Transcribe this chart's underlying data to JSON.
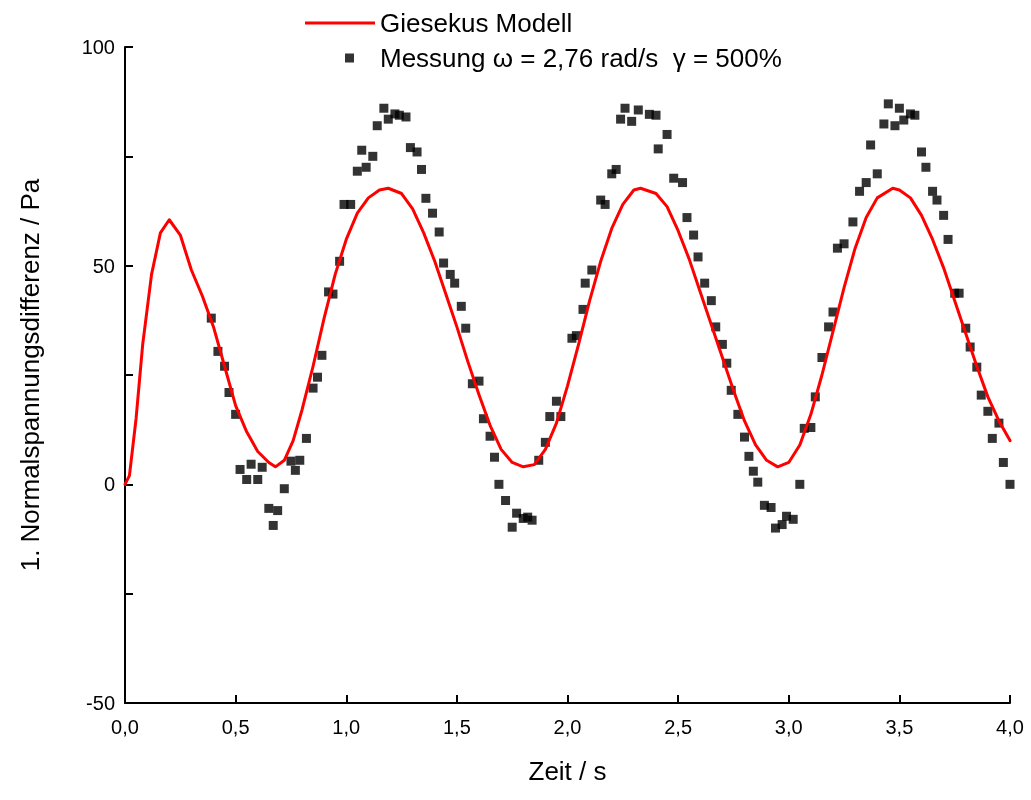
{
  "chart_data": {
    "type": "scatter",
    "xlabel": "Zeit / s",
    "ylabel": "1. Normalspannungsdifferenz / Pa",
    "xlim": [
      0,
      4
    ],
    "ylim": [
      -50,
      100
    ],
    "xticks": [
      {
        "value": 0,
        "label": "0,0"
      },
      {
        "value": 0.5,
        "label": "0,5"
      },
      {
        "value": 1,
        "label": "1,0"
      },
      {
        "value": 1.5,
        "label": "1,5"
      },
      {
        "value": 2,
        "label": "2,0"
      },
      {
        "value": 2.5,
        "label": "2,5"
      },
      {
        "value": 3,
        "label": "3,0"
      },
      {
        "value": 3.5,
        "label": "3,5"
      },
      {
        "value": 4,
        "label": "4,0"
      }
    ],
    "yticks": [
      -50,
      {
        "value": -25,
        "label": null
      },
      0,
      {
        "value": 25,
        "label": null
      },
      50,
      {
        "value": 75,
        "label": null
      },
      100
    ],
    "grid": false,
    "legend": "top",
    "series": [
      {
        "name": "Giesekus Modell",
        "type": "line",
        "marker": "none",
        "line_style": "solid",
        "color": "#ff0000",
        "x": [
          0,
          0.02,
          0.05,
          0.08,
          0.12,
          0.16,
          0.2,
          0.25,
          0.3,
          0.35,
          0.4,
          0.45,
          0.5,
          0.55,
          0.6,
          0.65,
          0.68,
          0.72,
          0.76,
          0.8,
          0.85,
          0.9,
          0.95,
          1.0,
          1.05,
          1.1,
          1.15,
          1.19,
          1.25,
          1.3,
          1.35,
          1.4,
          1.45,
          1.5,
          1.55,
          1.6,
          1.65,
          1.7,
          1.75,
          1.8,
          1.85,
          1.9,
          1.95,
          2.0,
          2.05,
          2.1,
          2.15,
          2.2,
          2.25,
          2.3,
          2.33,
          2.4,
          2.45,
          2.5,
          2.55,
          2.6,
          2.65,
          2.7,
          2.75,
          2.8,
          2.85,
          2.9,
          2.95,
          3.0,
          3.05,
          3.1,
          3.15,
          3.2,
          3.25,
          3.3,
          3.35,
          3.4,
          3.47,
          3.5,
          3.55,
          3.6,
          3.65,
          3.7,
          3.75,
          3.8,
          3.85,
          3.9,
          3.95,
          4.0
        ],
        "values": [
          0,
          2,
          15,
          32,
          48,
          57.5,
          60.5,
          57,
          49,
          43,
          36,
          27,
          18,
          12,
          7.5,
          5,
          4,
          5.5,
          10,
          17,
          27,
          38,
          48,
          56,
          62,
          65.5,
          67.3,
          67.7,
          66.5,
          63,
          57.5,
          51,
          43.5,
          36,
          28,
          20.5,
          13.5,
          8,
          5,
          4,
          4.5,
          8,
          14,
          22.5,
          32,
          42,
          51,
          58.5,
          64,
          67.3,
          67.7,
          66.5,
          63.5,
          58,
          51.5,
          44,
          36.5,
          29,
          21.5,
          14.5,
          9,
          5.5,
          4,
          5,
          9,
          16,
          25,
          35,
          45,
          54,
          61,
          65.5,
          67.7,
          67.3,
          65.5,
          61.5,
          56,
          49.5,
          42,
          34.5,
          27,
          20,
          14.5,
          10
        ]
      },
      {
        "name": "Messung ω = 2,76 rad/s  γ = 500%",
        "marker": "square",
        "color": "#000000",
        "x": [
          0.39,
          0.42,
          0.45,
          0.47,
          0.5,
          0.52,
          0.55,
          0.57,
          0.6,
          0.62,
          0.65,
          0.67,
          0.69,
          0.72,
          0.75,
          0.77,
          0.79,
          0.82,
          0.85,
          0.87,
          0.89,
          0.92,
          0.94,
          0.97,
          0.99,
          1.02,
          1.05,
          1.07,
          1.09,
          1.12,
          1.14,
          1.17,
          1.19,
          1.22,
          1.24,
          1.27,
          1.29,
          1.32,
          1.34,
          1.36,
          1.39,
          1.42,
          1.44,
          1.47,
          1.49,
          1.52,
          1.54,
          1.57,
          1.6,
          1.62,
          1.65,
          1.67,
          1.69,
          1.72,
          1.75,
          1.77,
          1.8,
          1.82,
          1.84,
          1.87,
          1.9,
          1.92,
          1.95,
          1.97,
          2.02,
          2.04,
          2.07,
          2.08,
          2.11,
          2.15,
          2.17,
          2.2,
          2.22,
          2.24,
          2.26,
          2.29,
          2.32,
          2.37,
          2.4,
          2.41,
          2.45,
          2.48,
          2.52,
          2.54,
          2.57,
          2.59,
          2.62,
          2.65,
          2.67,
          2.7,
          2.72,
          2.74,
          2.77,
          2.8,
          2.82,
          2.84,
          2.86,
          2.89,
          2.92,
          2.94,
          2.97,
          2.99,
          3.02,
          3.05,
          3.07,
          3.1,
          3.12,
          3.15,
          3.18,
          3.2,
          3.22,
          3.25,
          3.29,
          3.32,
          3.35,
          3.37,
          3.4,
          3.43,
          3.45,
          3.48,
          3.5,
          3.52,
          3.55,
          3.57,
          3.6,
          3.62,
          3.65,
          3.67,
          3.7,
          3.72,
          3.75,
          3.77,
          3.8,
          3.82,
          3.85,
          3.87,
          3.9,
          3.92,
          3.95,
          3.97,
          4.0
        ],
        "values": [
          38,
          30.4,
          27,
          21,
          16,
          3.4,
          1.1,
          4.6,
          1.1,
          3.9,
          -5.5,
          -9.4,
          -6,
          -1,
          5.3,
          3.2,
          5.5,
          10.5,
          22,
          24.5,
          29.5,
          44,
          43.5,
          51,
          64,
          64,
          71.6,
          76.4,
          72.5,
          75,
          82,
          86,
          83.5,
          84.7,
          84.4,
          84,
          77,
          76,
          72,
          65.4,
          62,
          57.7,
          50.6,
          48,
          46,
          40.7,
          35.7,
          23,
          23.6,
          15,
          11,
          6.2,
          0,
          -3.7,
          -9.8,
          -6.6,
          -7.8,
          -7.5,
          -8.2,
          5.5,
          9.6,
          15.5,
          19,
          15.5,
          33.4,
          34,
          40,
          46,
          49,
          65,
          64,
          71,
          72,
          83.5,
          86,
          83,
          85.6,
          84.6,
          84.4,
          76.7,
          80,
          70,
          69,
          61,
          57,
          52,
          46,
          42,
          36,
          32,
          27.7,
          21.5,
          16,
          10.8,
          6.4,
          3,
          0.5,
          -4.8,
          -5.3,
          -10,
          -9.2,
          -7.3,
          -8,
          0,
          12.8,
          13,
          20,
          29,
          36,
          39.4,
          54,
          55,
          60,
          67,
          69,
          77.6,
          71,
          82.4,
          87,
          82,
          86,
          83.3,
          84.7,
          84.4,
          76,
          72.5,
          67,
          65,
          61.5,
          56,
          43.7,
          43.7,
          35.7,
          31.4,
          26.8,
          20.4,
          16.7,
          10.5,
          14,
          5,
          0
        ]
      }
    ]
  }
}
